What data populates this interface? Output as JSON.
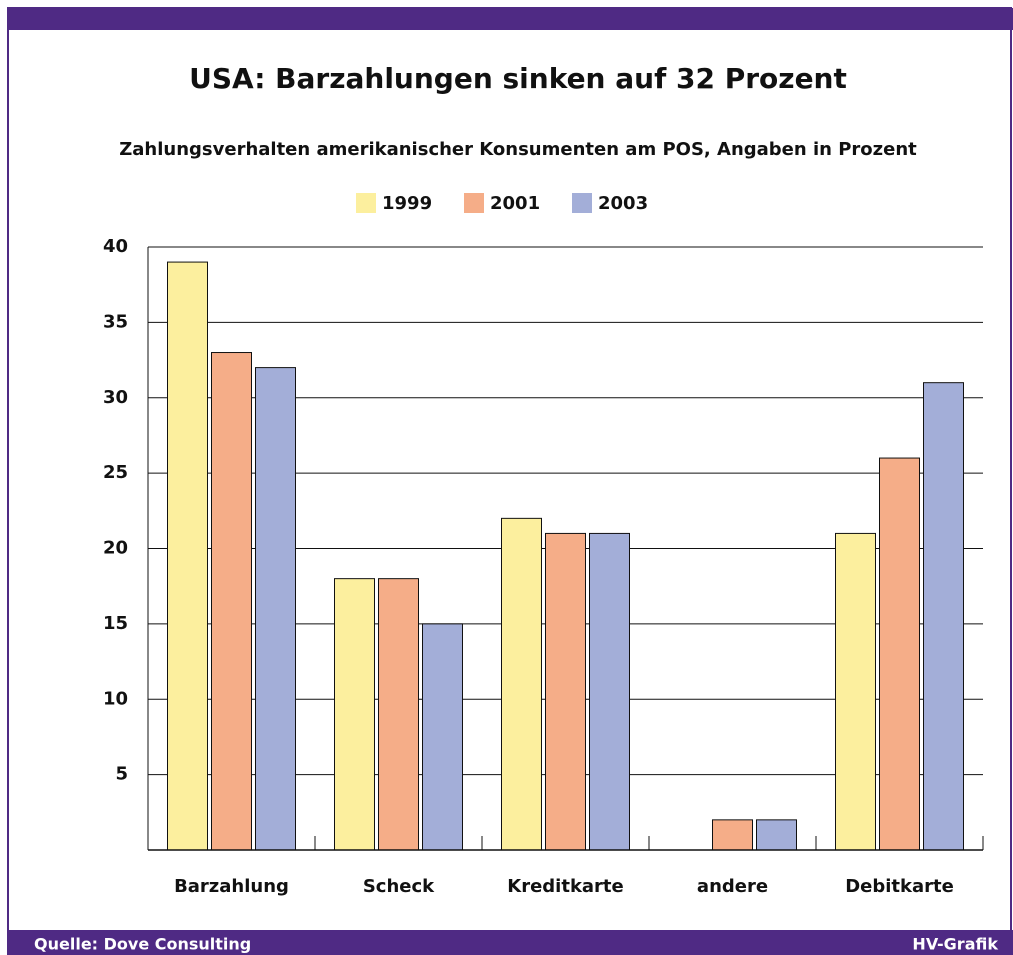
{
  "chart_data": {
    "type": "bar",
    "title": "USA: Barzahlungen sinken auf 32 Prozent",
    "subtitle": "Zahlungsverhalten amerikanischer Konsumenten am POS, Angaben in Prozent",
    "categories": [
      "Barzahlung",
      "Scheck",
      "Kreditkarte",
      "andere",
      "Debitkarte"
    ],
    "series": [
      {
        "name": "1999",
        "color": "#fcef9e",
        "values": [
          39,
          18,
          22,
          null,
          21
        ]
      },
      {
        "name": "2001",
        "color": "#f5ad88",
        "values": [
          33,
          18,
          21,
          2,
          26
        ]
      },
      {
        "name": "2003",
        "color": "#a3aed8",
        "values": [
          32,
          15,
          21,
          2,
          31
        ]
      }
    ],
    "ylim": [
      0,
      40
    ],
    "yticks": [
      5,
      10,
      15,
      20,
      25,
      30,
      35,
      40
    ],
    "grid": true,
    "legend": "top",
    "source": "Quelle: Dove Consulting",
    "credit": "HV-Grafik"
  }
}
